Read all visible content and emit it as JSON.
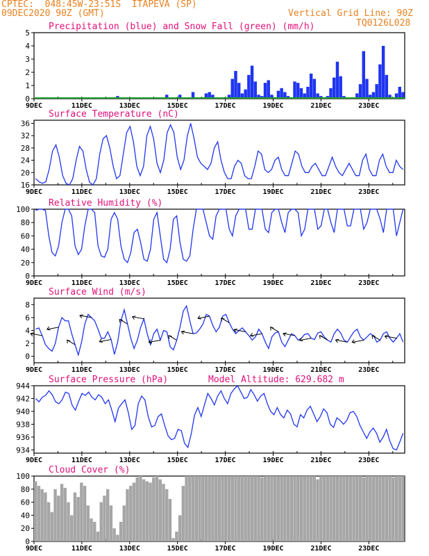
{
  "header": {
    "station_line": "CPTEC:  048:45W-23:51S  ITAPEVA (SP)",
    "date_line": "09DEC2020 90Z (GMT)",
    "grid_note": "Vertical Grid Line: 90Z",
    "run_id": "TQ0126L028"
  },
  "colors": {
    "header": "#e8801e",
    "panel_title": "#e0107a",
    "series_blue": "#1f35f0",
    "snow_green": "#1e9e2e",
    "cloud_gray": "#a6a6a6"
  },
  "x_axis": {
    "start": "2020-12-09T00:00Z",
    "end": "2020-12-24T12:00Z",
    "tick_labels": [
      "9DEC",
      "11DEC",
      "13DEC",
      "15DEC",
      "17DEC",
      "19DEC",
      "21DEC",
      "23DEC"
    ]
  },
  "chart_data": [
    {
      "type": "bar",
      "title": "Precipitation (blue) and Snow Fall (green) (mm/h)",
      "ylim": [
        0,
        5
      ],
      "yticks": [
        0,
        1,
        2,
        3,
        4,
        5
      ],
      "series": [
        {
          "name": "Precipitation",
          "color": "#1f35f0",
          "values": [
            0,
            0,
            0,
            0,
            0,
            0,
            0,
            0,
            0,
            0,
            0,
            0,
            0,
            0,
            0,
            0,
            0.1,
            0,
            0,
            0,
            0,
            0,
            0,
            0.1,
            0,
            0.2,
            0,
            0,
            0,
            0,
            0,
            0,
            0,
            0.1,
            0,
            0,
            0,
            0.1,
            0,
            0.1,
            0.3,
            0.1,
            0,
            0,
            0.3,
            0.1,
            0,
            0,
            0.5,
            0,
            0,
            0,
            0.4,
            0.5,
            0.3,
            0,
            0.1,
            0,
            0,
            0.3,
            1.5,
            2.1,
            1.2,
            0.4,
            0.7,
            1.8,
            2.5,
            1.3,
            0.3,
            0.2,
            1.2,
            1.4,
            0.3,
            0.1,
            0.6,
            0.8,
            0.5,
            0.2,
            0.1,
            1.3,
            1.2,
            0.8,
            0.4,
            0.9,
            1.9,
            1.5,
            0.4,
            0.2,
            0.1,
            0.2,
            0.8,
            1.6,
            2.8,
            1.7,
            0.2,
            0.1,
            0,
            0.1,
            0.4,
            1.1,
            3.6,
            1.5,
            0.3,
            0.5,
            1.1,
            2.6,
            4.0,
            1.8,
            0.3,
            0,
            0.4,
            0.9,
            0.5
          ]
        }
      ]
    },
    {
      "type": "line",
      "title": "Surface Temperature (nC)",
      "ylim": [
        16,
        37
      ],
      "yticks": [
        16,
        20,
        24,
        28,
        32,
        36
      ],
      "series": [
        {
          "name": "Temperature",
          "color": "#1f35f0",
          "values": [
            18,
            17,
            16.5,
            17,
            21,
            27,
            29,
            25,
            19,
            16.5,
            16,
            18,
            24,
            28.5,
            27,
            21,
            16.8,
            16,
            18,
            26,
            31,
            32,
            28,
            22,
            18,
            19,
            26,
            33,
            35,
            30,
            22,
            19,
            22,
            32,
            35,
            31,
            23,
            20,
            24,
            33,
            35.5,
            33,
            25,
            21,
            24,
            32,
            36,
            31,
            25,
            23,
            22,
            21,
            23,
            28,
            30,
            24,
            20,
            18,
            18,
            22,
            24,
            23,
            19,
            18,
            18,
            22,
            27,
            26,
            21,
            20,
            21,
            24,
            25,
            21,
            19,
            19,
            23,
            27,
            26,
            22,
            20,
            20,
            22,
            23,
            21,
            19,
            19,
            22,
            25,
            22,
            20,
            19,
            21,
            23,
            21,
            19,
            19,
            24,
            26,
            21,
            19,
            19,
            24,
            26,
            22,
            20,
            20,
            24,
            22,
            21
          ]
        }
      ]
    },
    {
      "type": "line",
      "title": "Relative Humidity (%)",
      "ylim": [
        0,
        100
      ],
      "yticks": [
        0,
        20,
        40,
        60,
        80,
        100
      ],
      "series": [
        {
          "name": "Relative Humidity",
          "color": "#1f35f0",
          "values": [
            98,
            100,
            100,
            98,
            60,
            35,
            30,
            45,
            80,
            100,
            100,
            90,
            45,
            32,
            40,
            75,
            100,
            100,
            95,
            45,
            30,
            28,
            40,
            85,
            95,
            85,
            45,
            25,
            20,
            35,
            65,
            70,
            50,
            25,
            22,
            40,
            85,
            95,
            60,
            25,
            20,
            40,
            85,
            90,
            50,
            25,
            22,
            30,
            70,
            100,
            100,
            100,
            80,
            60,
            55,
            90,
            100,
            100,
            100,
            70,
            60,
            90,
            100,
            100,
            100,
            70,
            70,
            100,
            100,
            100,
            70,
            65,
            95,
            100,
            100,
            80,
            65,
            95,
            100,
            100,
            95,
            60,
            70,
            100,
            100,
            100,
            70,
            75,
            100,
            100,
            80,
            65,
            100,
            100,
            100,
            75,
            75,
            100,
            100,
            100,
            70,
            80,
            100,
            100,
            100,
            85,
            65,
            100,
            100,
            100,
            60,
            80,
            100
          ]
        }
      ]
    },
    {
      "type": "line",
      "title": "Surface Wind (m/s)",
      "ylim": [
        -1,
        9
      ],
      "yticks": [
        0,
        2,
        4,
        6,
        8
      ],
      "series": [
        {
          "name": "Wind speed",
          "color": "#1f35f0",
          "values": [
            4.2,
            4.4,
            3.2,
            1.8,
            1.2,
            0.8,
            2,
            4.5,
            6,
            5.5,
            5.5,
            3.5,
            1.8,
            0.2,
            2.2,
            5,
            6.5,
            6,
            5.5,
            4.2,
            2.8,
            2.8,
            3.8,
            2.6,
            0.3,
            2.2,
            5.5,
            7.2,
            5,
            2.8,
            1.2,
            2.5,
            4.5,
            5.8,
            3.5,
            1.8,
            3.5,
            4.2,
            2.5,
            4,
            3.8,
            1.5,
            1,
            2.5,
            4.5,
            7,
            7.8,
            5.5,
            3.5,
            3.6,
            4.2,
            5,
            6.5,
            6.2,
            4.8,
            3.8,
            4.5,
            6.2,
            6.5,
            5.2,
            4.2,
            3.5,
            4,
            4.4,
            3.8,
            3.2,
            2.5,
            3,
            4.2,
            3.5,
            2.2,
            1.2,
            3,
            3.6,
            3.8,
            2.2,
            1.5,
            2.5,
            3.5,
            3.2,
            2.5,
            2.8,
            3.4,
            3.5,
            2.8,
            2.6,
            3.6,
            3.8,
            3,
            2.5,
            2.2,
            3.5,
            4.2,
            3.6,
            2.5,
            2.2,
            3,
            3.8,
            4.2,
            3,
            2.5,
            3,
            3.5,
            3.2,
            2.2,
            2.5,
            3.5,
            3.8,
            2.8,
            2.2,
            2.8,
            3.5,
            2.2
          ]
        }
      ]
    },
    {
      "type": "line",
      "title": "Surface Pressure (hPa)",
      "annotation": "Model Altitude: 629.682 m",
      "ylim": [
        933.5,
        944
      ],
      "yticks": [
        934,
        936,
        938,
        940,
        942,
        944
      ],
      "series": [
        {
          "name": "Pressure",
          "color": "#1f35f0",
          "values": [
            942.0,
            941.5,
            942.2,
            942.5,
            943.2,
            942.6,
            941.5,
            941.2,
            941.8,
            943.0,
            942.8,
            941.0,
            940.2,
            941.6,
            942.8,
            942.5,
            943.0,
            942.2,
            941.8,
            942.6,
            942.2,
            941.2,
            941.8,
            940.2,
            938.4,
            940.5,
            941.2,
            941.8,
            939.8,
            937.2,
            937.8,
            941.2,
            942.4,
            941.8,
            939.2,
            937.6,
            937.8,
            939.2,
            939.6,
            937.8,
            936.2,
            935.6,
            935.8,
            937.2,
            937.0,
            935.0,
            934.4,
            936.5,
            939.4,
            940.6,
            939.2,
            941.0,
            942.8,
            942.0,
            941.0,
            942.4,
            943.2,
            942.0,
            941.2,
            942.8,
            943.5,
            944.0,
            943.0,
            942.0,
            942.2,
            943.4,
            942.6,
            941.6,
            942.4,
            942.8,
            941.2,
            940.0,
            939.5,
            940.6,
            939.5,
            939.0,
            940.2,
            939.6,
            938.0,
            937.6,
            939.5,
            939.0,
            940.2,
            940.8,
            939.6,
            938.4,
            939.2,
            940.4,
            939.8,
            938.0,
            937.5,
            939.0,
            938.6,
            938.0,
            938.6,
            939.8,
            940.0,
            939.2,
            937.8,
            936.8,
            935.8,
            936.8,
            937.4,
            936.6,
            935.2,
            936.0,
            937.2,
            935.4,
            934.2,
            934.0,
            935.2,
            936.6
          ]
        }
      ]
    },
    {
      "type": "bar",
      "title": "Cloud Cover (%)",
      "ylim": [
        0,
        100
      ],
      "yticks": [
        0,
        20,
        40,
        60,
        80,
        100
      ],
      "series": [
        {
          "name": "Cloud Cover",
          "color": "#a6a6a6",
          "values": [
            92,
            85,
            80,
            75,
            60,
            45,
            80,
            70,
            88,
            82,
            60,
            40,
            75,
            68,
            90,
            85,
            55,
            35,
            30,
            15,
            60,
            70,
            80,
            55,
            20,
            10,
            30,
            55,
            80,
            85,
            90,
            98,
            100,
            95,
            92,
            90,
            98,
            100,
            95,
            88,
            80,
            65,
            5,
            15,
            40,
            85,
            100,
            100,
            100,
            100,
            100,
            100,
            100,
            100,
            100,
            100,
            100,
            100,
            100,
            100,
            100,
            100,
            100,
            100,
            100,
            100,
            100,
            100,
            100,
            98,
            100,
            100,
            100,
            100,
            100,
            100,
            100,
            100,
            100,
            100,
            100,
            100,
            100,
            100,
            100,
            100,
            95,
            100,
            100,
            100,
            100,
            100,
            100,
            100,
            100,
            100,
            100,
            100,
            100,
            100,
            98,
            100,
            100,
            100,
            100,
            100,
            100,
            100,
            100,
            98,
            100,
            100,
            100
          ]
        }
      ]
    }
  ]
}
